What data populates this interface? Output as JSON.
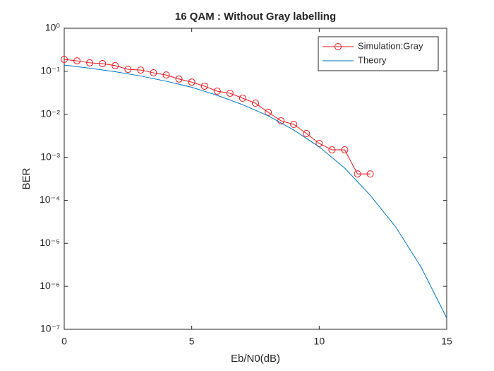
{
  "chart_data": {
    "type": "line",
    "title": "16 QAM : Without Gray labelling",
    "x_label": "Eb/N0(dB)",
    "y_label": "BER",
    "xlim": [
      0,
      15
    ],
    "xticks": [
      0,
      5,
      10,
      15
    ],
    "ylim": [
      1e-07,
      1
    ],
    "log_y": true,
    "yticks": [
      {
        "value": 1,
        "label": "10⁰"
      },
      {
        "value": 0.1,
        "label": "10⁻¹"
      },
      {
        "value": 0.01,
        "label": "10⁻²"
      },
      {
        "value": 0.001,
        "label": "10⁻³"
      },
      {
        "value": 0.0001,
        "label": "10⁻⁴"
      },
      {
        "value": 1e-05,
        "label": "10⁻⁵"
      },
      {
        "value": 1e-06,
        "label": "10⁻⁶"
      },
      {
        "value": 1e-07,
        "label": "10⁻⁷"
      }
    ],
    "legend": "top-right",
    "series": [
      {
        "name": "Simulation:Gray",
        "color": "#e8161b",
        "marker": "circle",
        "x": [
          0,
          0.5,
          1,
          1.5,
          2,
          2.5,
          3,
          3.5,
          4,
          4.5,
          5,
          5.5,
          6,
          6.5,
          7,
          7.5,
          8,
          8.5,
          9,
          9.5,
          10,
          10.5,
          11,
          11.5,
          12
        ],
        "values": [
          0.189,
          0.175,
          0.157,
          0.151,
          0.135,
          0.111,
          0.107,
          0.092,
          0.082,
          0.066,
          0.056,
          0.045,
          0.0345,
          0.0308,
          0.0236,
          0.0181,
          0.0111,
          0.00705,
          0.00582,
          0.00356,
          0.0021,
          0.00149,
          0.00149,
          0.00041,
          0.00041
        ]
      },
      {
        "name": "Theory",
        "color": "#0072bd",
        "x": [
          0,
          1,
          2,
          3,
          4,
          5,
          6,
          7,
          8,
          9,
          10,
          11,
          12,
          13,
          14,
          15
        ],
        "values": [
          0.139,
          0.118,
          0.0975,
          0.0776,
          0.0587,
          0.0425,
          0.0276,
          0.0167,
          0.00919,
          0.00431,
          0.00175,
          0.00056,
          0.000131,
          2.4e-05,
          2.75e-06,
          1.83e-07
        ]
      }
    ]
  }
}
